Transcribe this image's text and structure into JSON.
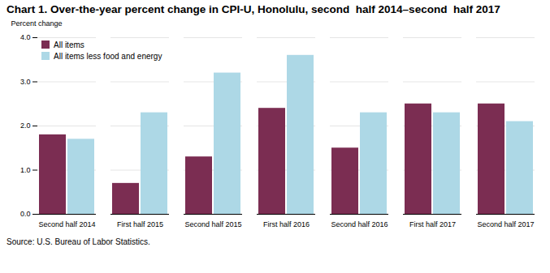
{
  "chart_data": {
    "type": "bar",
    "title": "Chart 1. Over-the-year percent change in CPI-U, Honolulu, second  half 2014–second  half 2017",
    "ylabel": "Percent change",
    "caption": "Source: U.S. Bureau of Labor Statistics.",
    "categories": [
      "Second half 2014",
      "First half 2015",
      "Second half 2015",
      "First half 2016",
      "Second half 2016",
      "First half 2017",
      "Second half 2017"
    ],
    "series": [
      {
        "name": "All items",
        "color": "#7B2D52",
        "values": [
          1.8,
          0.7,
          1.3,
          2.4,
          1.5,
          2.5,
          2.5
        ]
      },
      {
        "name": "All items less food and energy",
        "color": "#ADD8E6",
        "values": [
          1.7,
          2.3,
          3.2,
          3.6,
          2.3,
          2.3,
          2.1
        ]
      }
    ],
    "ylim": [
      0.0,
      4.0
    ],
    "yticks": [
      {
        "value": 0,
        "label": "0.0"
      },
      {
        "value": 1,
        "label": "1.0"
      },
      {
        "value": 2,
        "label": "2.0"
      },
      {
        "value": 3,
        "label": "3.0"
      },
      {
        "value": 4,
        "label": "4.0"
      }
    ],
    "grid": true,
    "legend": "upper left"
  }
}
